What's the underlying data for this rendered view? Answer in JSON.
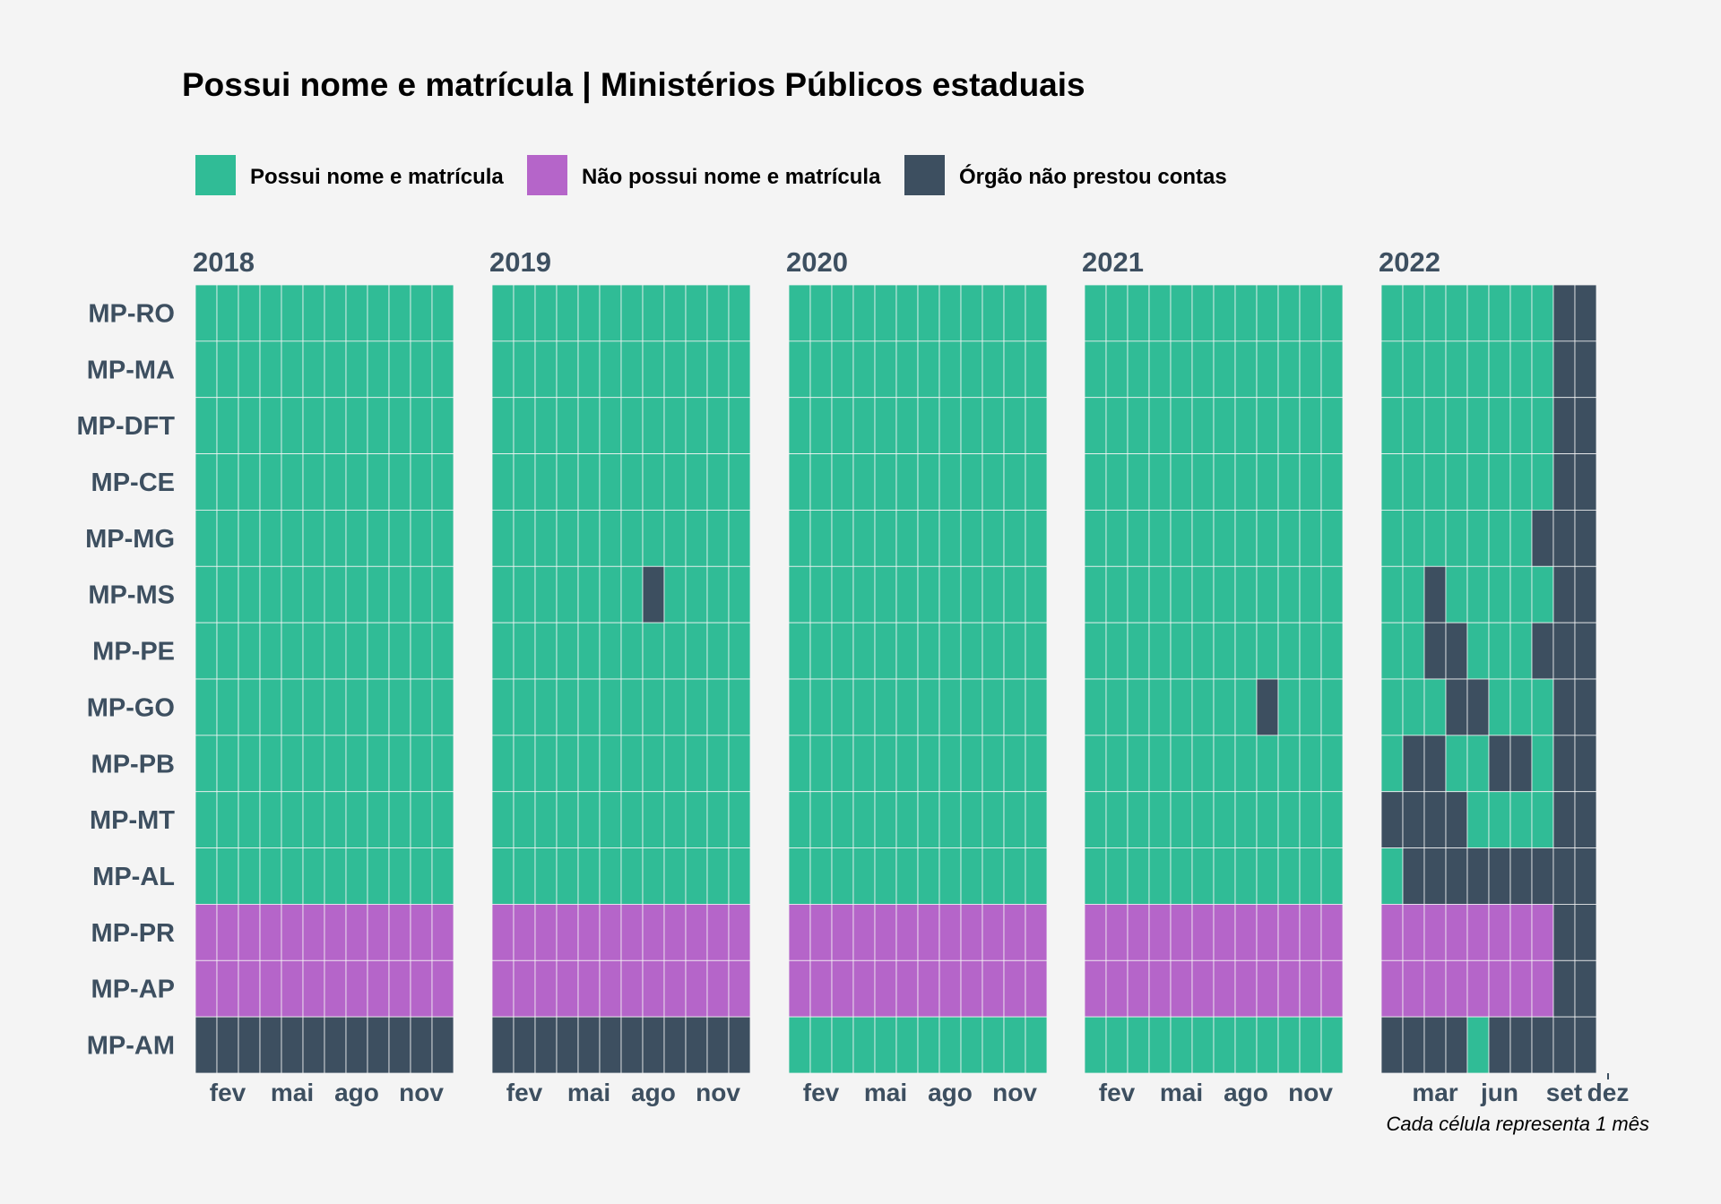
{
  "chart_data": {
    "type": "heatmap",
    "title": "Possui nome e matrícula | Ministérios Públicos estaduais",
    "caption": "Cada célula representa 1 mês",
    "legend": [
      {
        "code": "S",
        "label": "Possui nome e matrícula",
        "color": "#30bc96"
      },
      {
        "code": "N",
        "label": "Não possui nome e matrícula",
        "color": "#b565c9"
      },
      {
        "code": "X",
        "label": "Órgão não prestou contas",
        "color": "#3d4f60"
      }
    ],
    "legend_position": "top",
    "rows": [
      "MP-RO",
      "MP-MA",
      "MP-DFT",
      "MP-CE",
      "MP-MG",
      "MP-MS",
      "MP-PE",
      "MP-GO",
      "MP-PB",
      "MP-MT",
      "MP-AL",
      "MP-PR",
      "MP-AP",
      "MP-AM"
    ],
    "panels": [
      {
        "year": "2018",
        "ticks": [
          {
            "month": 2,
            "label": "fev"
          },
          {
            "month": 5,
            "label": "mai"
          },
          {
            "month": 8,
            "label": "ago"
          },
          {
            "month": 11,
            "label": "nov"
          }
        ],
        "values": [
          "SSSSSSSSSSSS",
          "SSSSSSSSSSSS",
          "SSSSSSSSSSSS",
          "SSSSSSSSSSSS",
          "SSSSSSSSSSSS",
          "SSSSSSSSSSSS",
          "SSSSSSSSSSSS",
          "SSSSSSSSSSSS",
          "SSSSSSSSSSSS",
          "SSSSSSSSSSSS",
          "SSSSSSSSSSSS",
          "NNNNNNNNNNNN",
          "NNNNNNNNNNNN",
          "XXXXXXXXXXXX"
        ]
      },
      {
        "year": "2019",
        "ticks": [
          {
            "month": 2,
            "label": "fev"
          },
          {
            "month": 5,
            "label": "mai"
          },
          {
            "month": 8,
            "label": "ago"
          },
          {
            "month": 11,
            "label": "nov"
          }
        ],
        "values": [
          "SSSSSSSSSSSS",
          "SSSSSSSSSSSS",
          "SSSSSSSSSSSS",
          "SSSSSSSSSSSS",
          "SSSSSSSSSSSS",
          "SSSSSSSXSSSS",
          "SSSSSSSSSSSS",
          "SSSSSSSSSSSS",
          "SSSSSSSSSSSS",
          "SSSSSSSSSSSS",
          "SSSSSSSSSSSS",
          "NNNNNNNNNNNN",
          "NNNNNNNNNNNN",
          "XXXXXXXXXXXX"
        ]
      },
      {
        "year": "2020",
        "ticks": [
          {
            "month": 2,
            "label": "fev"
          },
          {
            "month": 5,
            "label": "mai"
          },
          {
            "month": 8,
            "label": "ago"
          },
          {
            "month": 11,
            "label": "nov"
          }
        ],
        "values": [
          "SSSSSSSSSSSS",
          "SSSSSSSSSSSS",
          "SSSSSSSSSSSS",
          "SSSSSSSSSSSS",
          "SSSSSSSSSSSS",
          "SSSSSSSSSSSS",
          "SSSSSSSSSSSS",
          "SSSSSSSSSSSS",
          "SSSSSSSSSSSS",
          "SSSSSSSSSSSS",
          "SSSSSSSSSSSS",
          "NNNNNNNNNNNN",
          "NNNNNNNNNNNN",
          "SSSSSSSSSSSS"
        ]
      },
      {
        "year": "2021",
        "ticks": [
          {
            "month": 2,
            "label": "fev"
          },
          {
            "month": 5,
            "label": "mai"
          },
          {
            "month": 8,
            "label": "ago"
          },
          {
            "month": 11,
            "label": "nov"
          }
        ],
        "values": [
          "SSSSSSSSSSSS",
          "SSSSSSSSSSSS",
          "SSSSSSSSSSSS",
          "SSSSSSSSSSSS",
          "SSSSSSSSSSSS",
          "SSSSSSSSSSSS",
          "SSSSSSSSSSSS",
          "SSSSSSSSXSSS",
          "SSSSSSSSSSSS",
          "SSSSSSSSSSSS",
          "SSSSSSSSSSSS",
          "NNNNNNNNNNNN",
          "NNNNNNNNNNNN",
          "SSSSSSSSSSSS"
        ]
      },
      {
        "year": "2022",
        "ticks": [
          {
            "month": 3,
            "label": "mar"
          },
          {
            "month": 6,
            "label": "jun"
          },
          {
            "month": 9,
            "label": "set"
          },
          {
            "month": 12,
            "label": "dez"
          }
        ],
        "values": [
          "SSSSSSSSXX",
          "SSSSSSSSXX",
          "SSSSSSSSXX",
          "SSSSSSSSXX",
          "SSSSSSSXXX",
          "SSXSSSSSXX",
          "SSXXSSSXXX",
          "SSSXXSSSXX",
          "SXXSSXXSXX",
          "XXXXSSSSXX",
          "SXXXXXXXXX",
          "NNNNNNNNXX",
          "NNNNNNNNXX",
          "XXXXSXXXXX"
        ]
      }
    ]
  }
}
